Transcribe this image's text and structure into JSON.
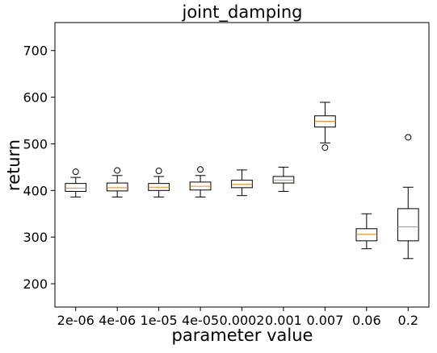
{
  "chart_data": {
    "type": "box",
    "title": "joint_damping",
    "xlabel": "parameter value",
    "ylabel": "return",
    "ylim": [
      150,
      760
    ],
    "yticks": [
      200,
      300,
      400,
      500,
      600,
      700
    ],
    "grid": false,
    "categories": [
      "2e-06",
      "4e-06",
      "1e-05",
      "4e-05",
      "0.0002",
      "0.001",
      "0.007",
      "0.06",
      "0.2"
    ],
    "boxes": [
      {
        "whisker_low": 386,
        "q1": 398,
        "median": 405,
        "q3": 415,
        "whisker_high": 428,
        "outliers": [
          440
        ]
      },
      {
        "whisker_low": 386,
        "q1": 399,
        "median": 406,
        "q3": 416,
        "whisker_high": 432,
        "outliers": [
          443
        ]
      },
      {
        "whisker_low": 386,
        "q1": 400,
        "median": 407,
        "q3": 415,
        "whisker_high": 430,
        "outliers": [
          442
        ]
      },
      {
        "whisker_low": 386,
        "q1": 401,
        "median": 409,
        "q3": 418,
        "whisker_high": 432,
        "outliers": [
          445
        ]
      },
      {
        "whisker_low": 389,
        "q1": 406,
        "median": 413,
        "q3": 422,
        "whisker_high": 444,
        "outliers": []
      },
      {
        "whisker_low": 398,
        "q1": 416,
        "median": 422,
        "q3": 430,
        "whisker_high": 450,
        "outliers": []
      },
      {
        "whisker_low": 502,
        "q1": 536,
        "median": 548,
        "q3": 560,
        "whisker_high": 589,
        "outliers": [
          492
        ]
      },
      {
        "whisker_low": 275,
        "q1": 292,
        "median": 306,
        "q3": 318,
        "whisker_high": 350,
        "outliers": []
      },
      {
        "whisker_low": 254,
        "q1": 292,
        "median": 322,
        "q3": 361,
        "whisker_high": 407,
        "outliers": [
          514
        ]
      }
    ],
    "colors": {
      "box": "#000000",
      "median": "#ff7f0e",
      "background": "#ffffff"
    }
  }
}
